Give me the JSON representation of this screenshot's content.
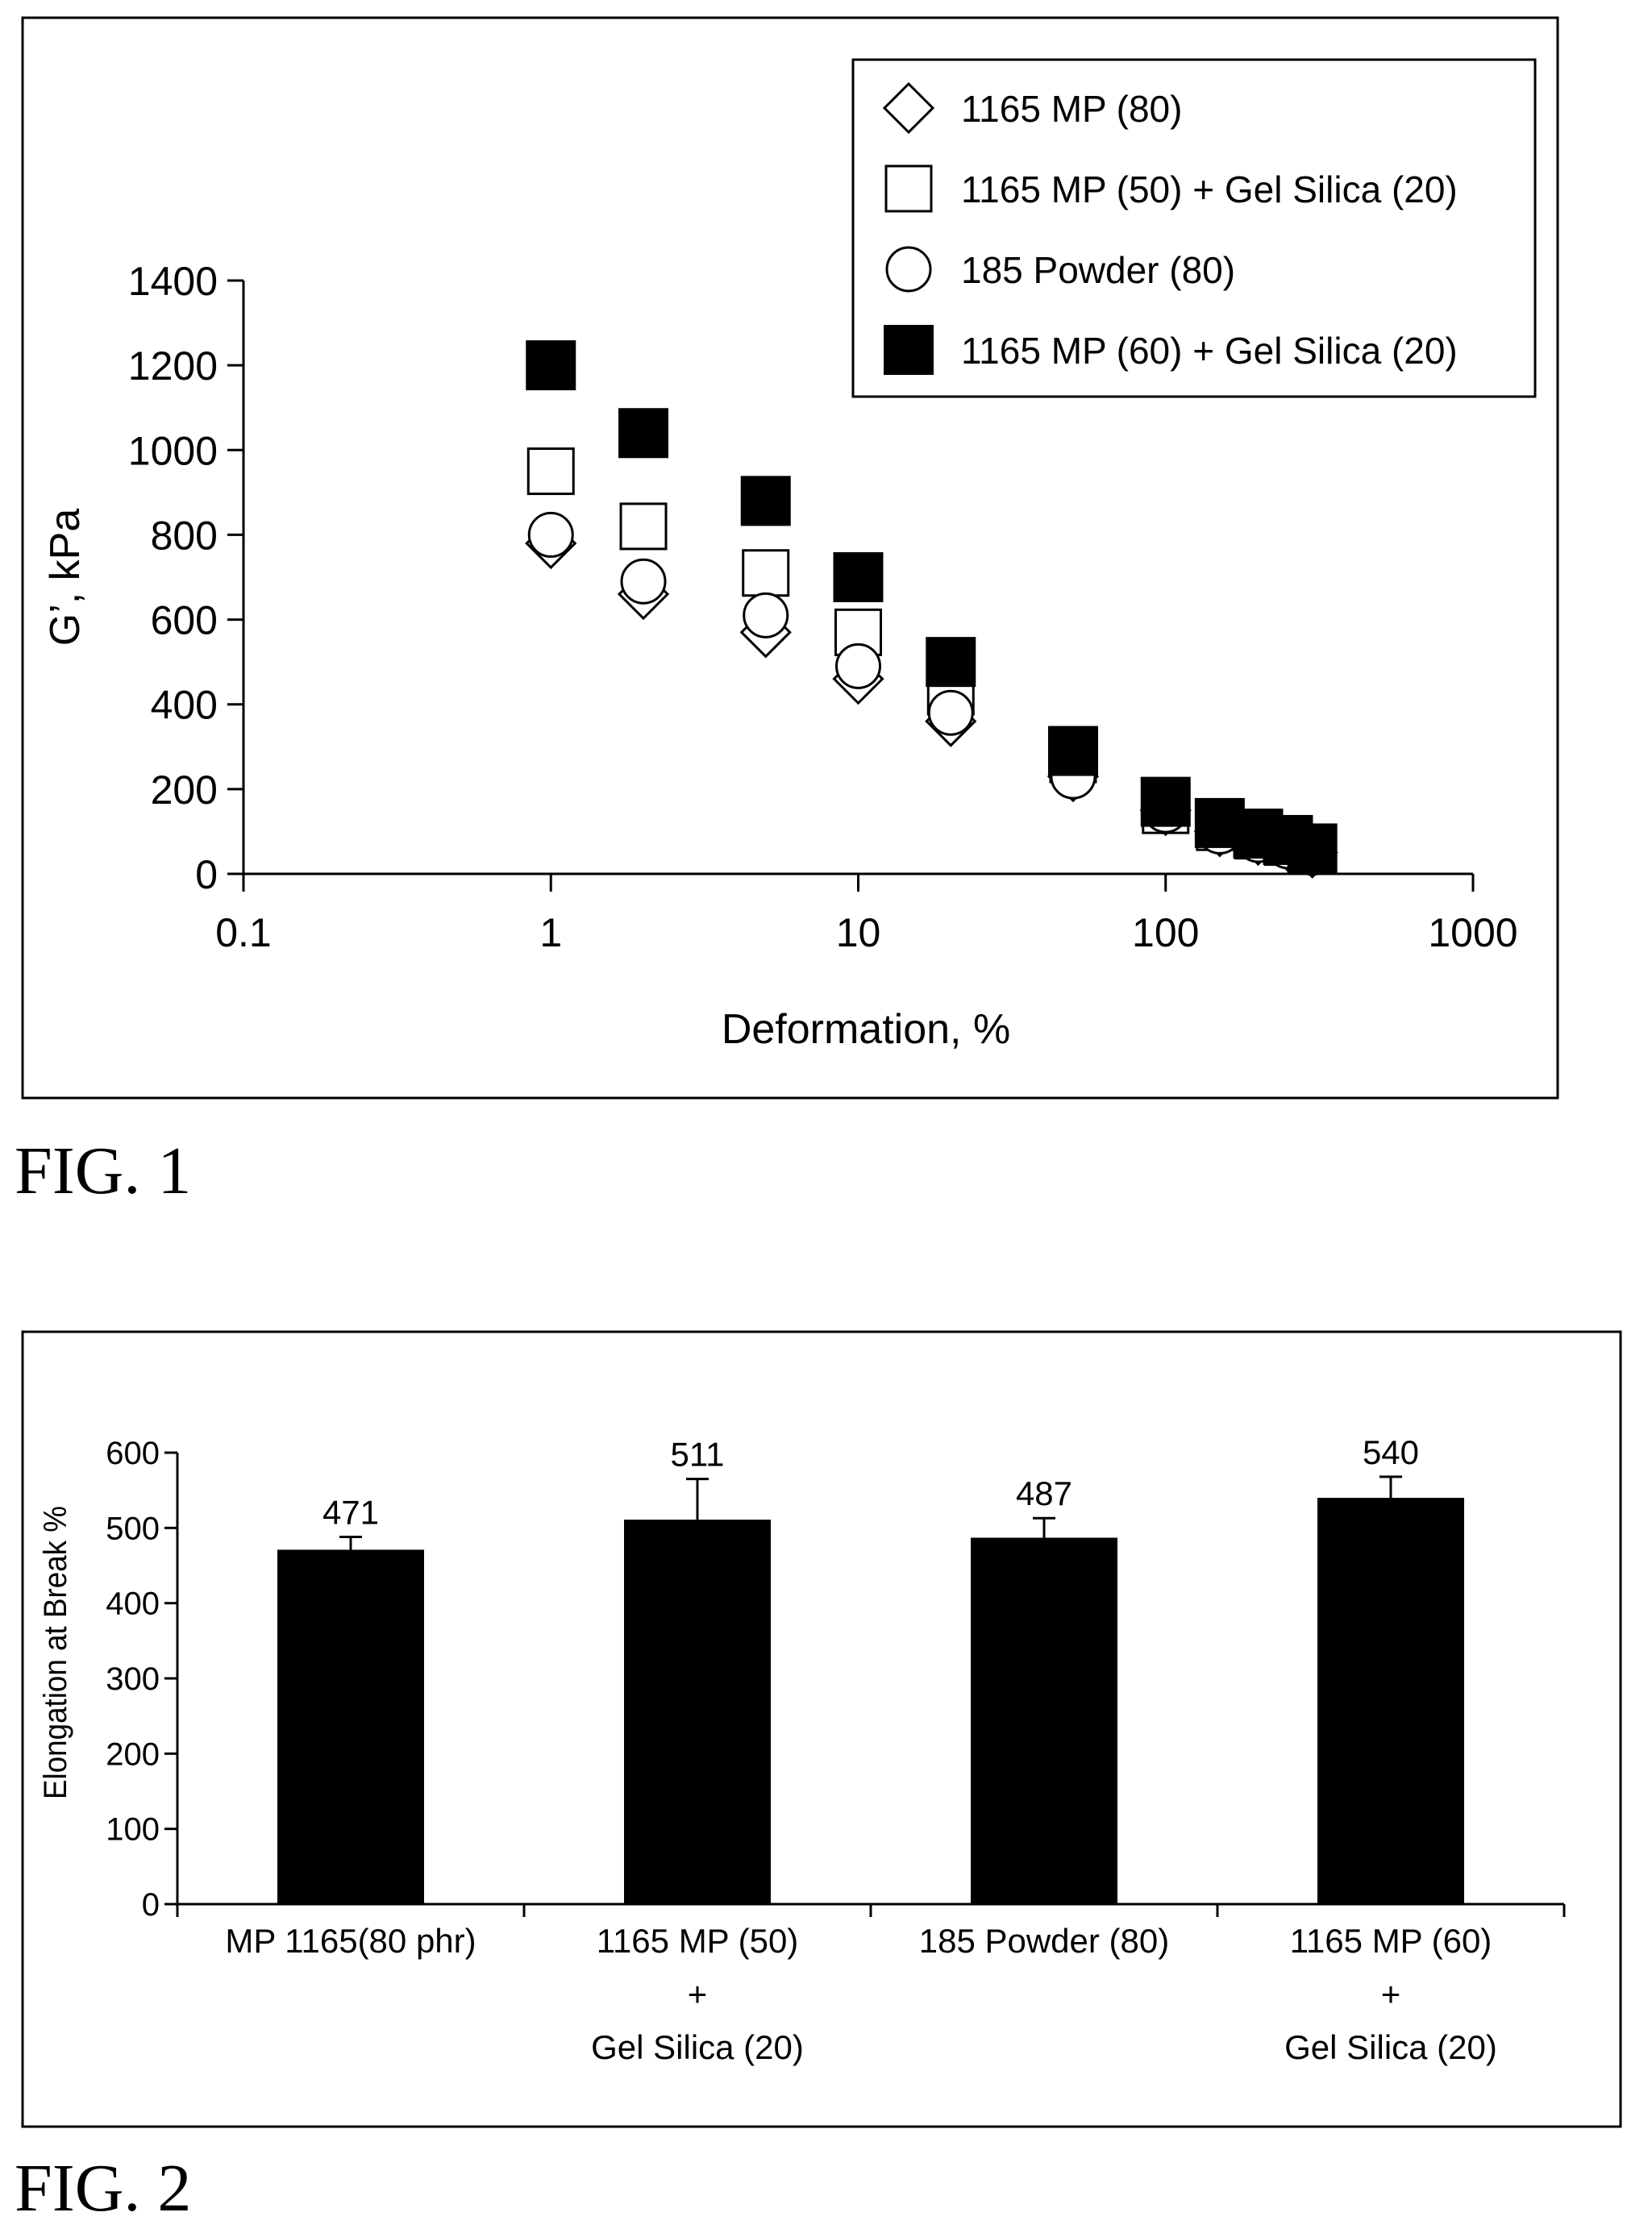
{
  "figures": [
    {
      "label": "FIG. 1"
    },
    {
      "label": "FIG. 2"
    }
  ],
  "chart_data": [
    {
      "type": "scatter",
      "title": "",
      "xlabel": "Deformation, %",
      "ylabel": "G’, kPa",
      "xscale": "log",
      "xlim": [
        0.1,
        1000
      ],
      "ylim": [
        0,
        1400
      ],
      "xticks": [
        "0.1",
        "1",
        "10",
        "100",
        "1000"
      ],
      "yticks": [
        "0",
        "200",
        "400",
        "600",
        "800",
        "1000",
        "1200",
        "1400"
      ],
      "grid": false,
      "legend_position": "top-right",
      "colors": {
        "marker_fill_solid": "#000000",
        "marker_fill_hollow": "#ffffff",
        "stroke": "#000000"
      },
      "series": [
        {
          "name": "1165 MP (80)",
          "marker": "diamond-hollow",
          "x": [
            1,
            2,
            5,
            10,
            20,
            50,
            100,
            150,
            200,
            250,
            300
          ],
          "y": [
            780,
            660,
            570,
            460,
            360,
            230,
            150,
            100,
            80,
            65,
            50
          ]
        },
        {
          "name": "1165 MP (50) + Gel Silica (20)",
          "marker": "square-hollow",
          "x": [
            1,
            2,
            5,
            10,
            20,
            50,
            100,
            150,
            200,
            250,
            300
          ],
          "y": [
            950,
            820,
            710,
            570,
            430,
            270,
            150,
            110,
            90,
            75,
            55
          ]
        },
        {
          "name": "185 Powder (80)",
          "marker": "circle-hollow",
          "x": [
            1,
            2,
            5,
            10,
            20,
            50,
            100,
            150,
            200,
            250,
            300
          ],
          "y": [
            800,
            690,
            610,
            490,
            380,
            230,
            150,
            100,
            80,
            65,
            50
          ]
        },
        {
          "name": "1165 MP (60) + Gel Silica (20)",
          "marker": "square-filled",
          "x": [
            1,
            2,
            5,
            10,
            20,
            50,
            100,
            150,
            200,
            250,
            300
          ],
          "y": [
            1200,
            1040,
            880,
            700,
            500,
            290,
            170,
            120,
            95,
            80,
            60
          ]
        }
      ]
    },
    {
      "type": "bar",
      "title": "",
      "xlabel": "",
      "ylabel": "Elongation at Break %",
      "ylim": [
        0,
        600
      ],
      "yticks": [
        "0",
        "100",
        "200",
        "300",
        "400",
        "500",
        "600"
      ],
      "grid": false,
      "categories": [
        [
          "MP 1165(80 phr)"
        ],
        [
          "1165 MP (50)",
          "+",
          "Gel Silica (20)"
        ],
        [
          "185 Powder (80)"
        ],
        [
          "1165 MP (60)",
          "+",
          "Gel Silica (20)"
        ]
      ],
      "values": [
        471,
        511,
        487,
        540
      ],
      "data_labels": [
        "471",
        "511",
        "487",
        "540"
      ],
      "error_upper": [
        488,
        565,
        513,
        568
      ],
      "colors": {
        "bar": "#000000"
      }
    }
  ]
}
